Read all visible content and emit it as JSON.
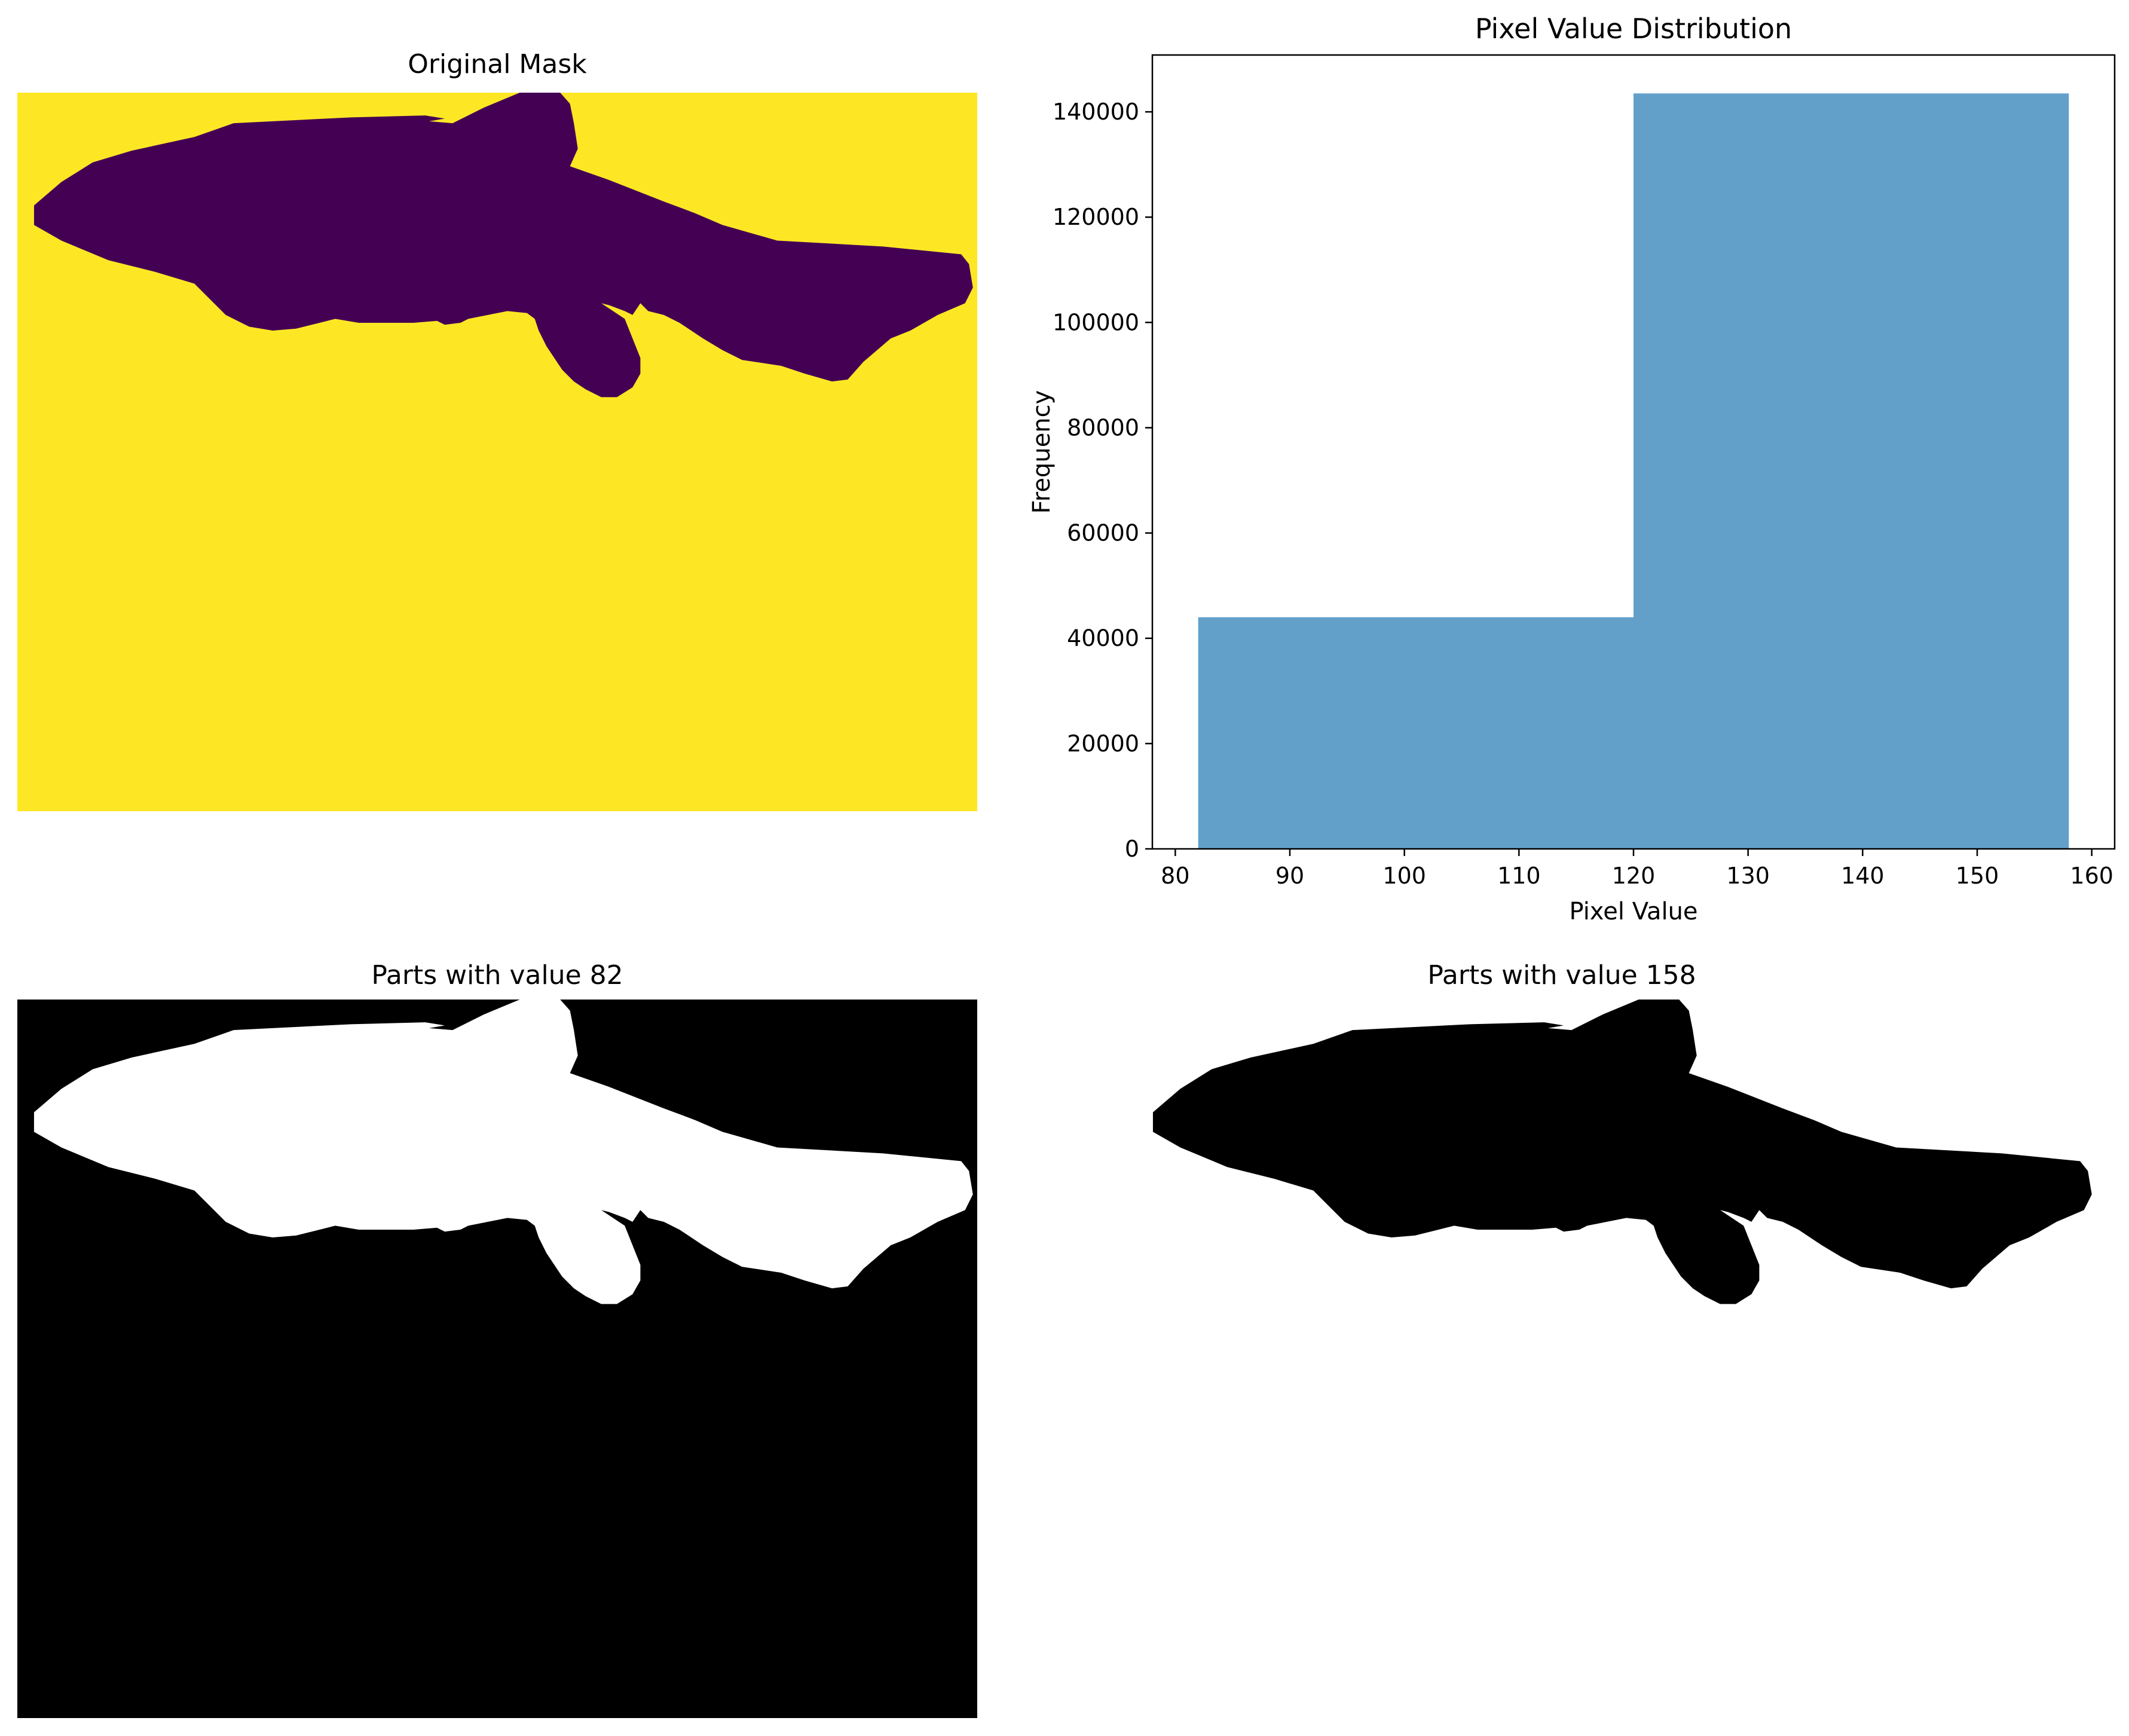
{
  "panels": {
    "original_mask": {
      "title": "Original Mask",
      "background_color": "#fde725",
      "shape_color": "#440154"
    },
    "histogram": {
      "title": "Pixel Value Distribution"
    },
    "parts_82": {
      "title": "Parts with value 82",
      "background_color": "#000000",
      "shape_color": "#ffffff"
    },
    "parts_158": {
      "title": "Parts with value 158",
      "background_color": "#ffffff",
      "shape_color": "#000000"
    }
  },
  "chart_data": [
    {
      "type": "bar",
      "title": "Pixel Value Distribution",
      "xlabel": "Pixel Value",
      "ylabel": "Frequency",
      "xlim": [
        78,
        162
      ],
      "ylim": [
        0,
        150800
      ],
      "xticks": [
        80,
        90,
        100,
        110,
        120,
        130,
        140,
        150,
        160
      ],
      "yticks": [
        0,
        20000,
        40000,
        60000,
        80000,
        100000,
        120000,
        140000
      ],
      "bins": [
        {
          "x_start": 82,
          "x_end": 120,
          "value": 44000
        },
        {
          "x_start": 120,
          "x_end": 158,
          "value": 143500
        }
      ],
      "bar_color": "#1f77b4",
      "bar_opacity": 0.7,
      "grid": false,
      "legend": "none"
    }
  ]
}
